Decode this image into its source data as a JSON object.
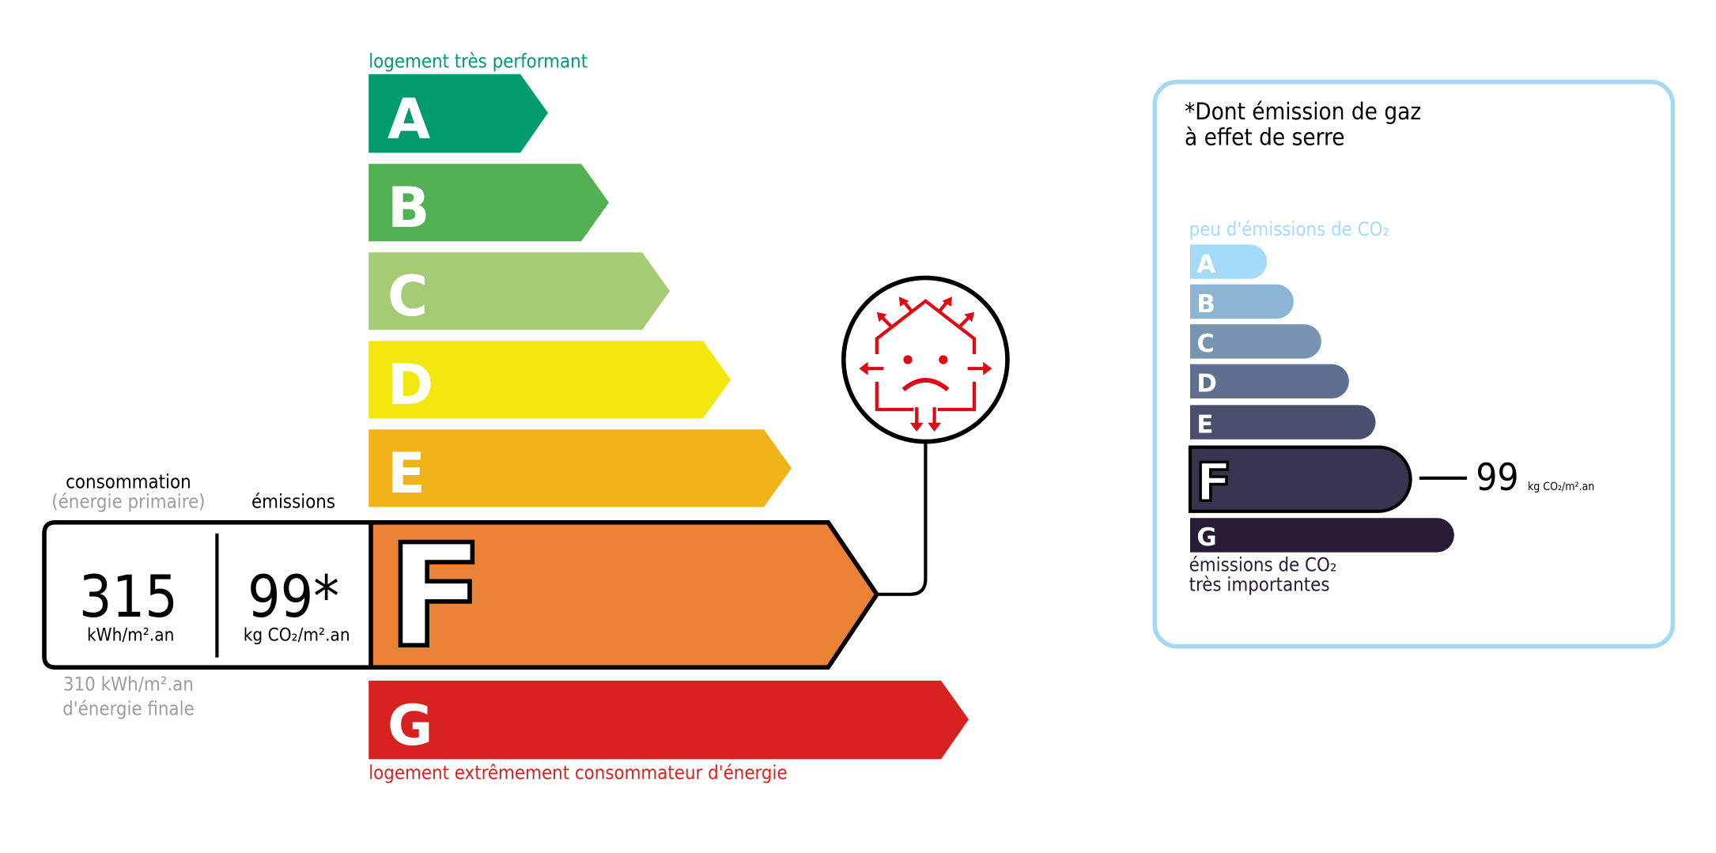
{
  "energy": {
    "top_label": "logement très performant",
    "bottom_label": "logement extrêmement consommateur d'énergie",
    "classes": [
      {
        "letter": "A",
        "color": "#009c6d"
      },
      {
        "letter": "B",
        "color": "#52b153"
      },
      {
        "letter": "C",
        "color": "#a5cc74"
      },
      {
        "letter": "D",
        "color": "#f4e70f"
      },
      {
        "letter": "E",
        "color": "#f0b41a"
      },
      {
        "letter": "F",
        "color": "#eb8235"
      },
      {
        "letter": "G",
        "color": "#d7221f"
      }
    ],
    "current_class": "F",
    "consumption_label": "consommation",
    "consumption_sublabel": "(énergie primaire)",
    "emissions_label": "émissions",
    "consumption_value": "315",
    "consumption_unit": "kWh/m².an",
    "emissions_value": "99*",
    "emissions_unit": "kg CO₂/m².an",
    "final_energy_value": "310 kWh/m².an",
    "final_energy_label": "d'énergie finale",
    "icon": "sad-house-heat-loss-icon",
    "icon_color": "#e30613"
  },
  "ges": {
    "title_line1": "*Dont émission de gaz",
    "title_line2": "à effet de serre",
    "top_label": "peu d'émissions de CO₂",
    "bottom_label_line1": "émissions de CO₂",
    "bottom_label_line2": "très importantes",
    "classes": [
      {
        "letter": "A",
        "color": "#a4dbf8"
      },
      {
        "letter": "B",
        "color": "#8cb4d3"
      },
      {
        "letter": "C",
        "color": "#7794b1"
      },
      {
        "letter": "D",
        "color": "#5f6f91"
      },
      {
        "letter": "E",
        "color": "#4b4f6e"
      },
      {
        "letter": "F",
        "color": "#383450"
      },
      {
        "letter": "G",
        "color": "#281b35"
      }
    ],
    "current_class": "F",
    "value": "99",
    "unit": "kg CO₂/m².an",
    "border_color": "#a5d8f3"
  }
}
